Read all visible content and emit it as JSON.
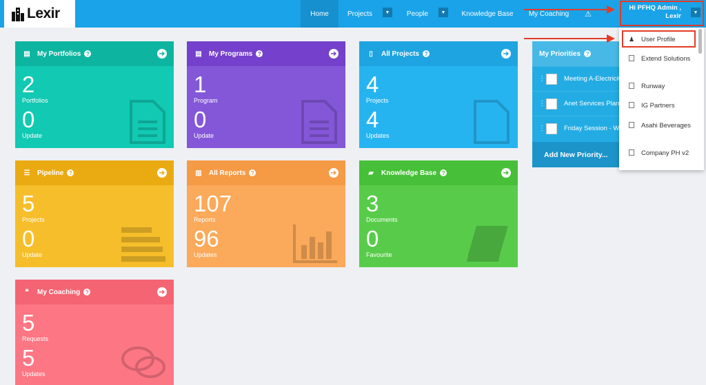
{
  "brand": {
    "name": "Lexir"
  },
  "nav": {
    "home": "Home",
    "projects": "Projects",
    "people": "People",
    "knowledge_base": "Knowledge Base",
    "my_coaching": "My Coaching",
    "alert": "⚠"
  },
  "user": {
    "greeting": "Hi PFHQ Admin ,",
    "org": "Lexir"
  },
  "cards": [
    {
      "title": "My Portfolios",
      "v1": "2",
      "l1": "Portfolios",
      "v2": "0",
      "l2": "Update",
      "color": "#12c9b3",
      "head": "#0db5a0"
    },
    {
      "title": "My Programs",
      "v1": "1",
      "l1": "Program",
      "v2": "0",
      "l2": "Update",
      "color": "#8457d8",
      "head": "#7440cc"
    },
    {
      "title": "All Projects",
      "v1": "4",
      "l1": "Projects",
      "v2": "4",
      "l2": "Updates",
      "color": "#26b4f1",
      "head": "#1ea4e0"
    },
    {
      "title": "Pipeline",
      "v1": "5",
      "l1": "Projects",
      "v2": "0",
      "l2": "Update",
      "color": "#f6be2a",
      "head": "#eaaa12"
    },
    {
      "title": "All Reports",
      "v1": "107",
      "l1": "Reports",
      "v2": "96",
      "l2": "Updates",
      "color": "#fba95a",
      "head": "#f59a45"
    },
    {
      "title": "Knowledge Base",
      "v1": "3",
      "l1": "Documents",
      "v2": "0",
      "l2": "Favourite",
      "color": "#58cc4a",
      "head": "#47bf38"
    },
    {
      "title": "My Coaching",
      "v1": "5",
      "l1": "Requests",
      "v2": "5",
      "l2": "Updates",
      "color": "#fd7684",
      "head": "#f46472"
    }
  ],
  "priorities": {
    "title": "My Priorities",
    "items": [
      "Meeting A-Electricity",
      "Anet Services Plan",
      "Friday Session - Wa"
    ],
    "add_label": "Add New Priority..."
  },
  "dropdown": {
    "items": [
      "User Profile",
      "Extend Solutions",
      "Runway",
      "IG Partners",
      "Asahi Beverages",
      "Company PH v2"
    ]
  }
}
